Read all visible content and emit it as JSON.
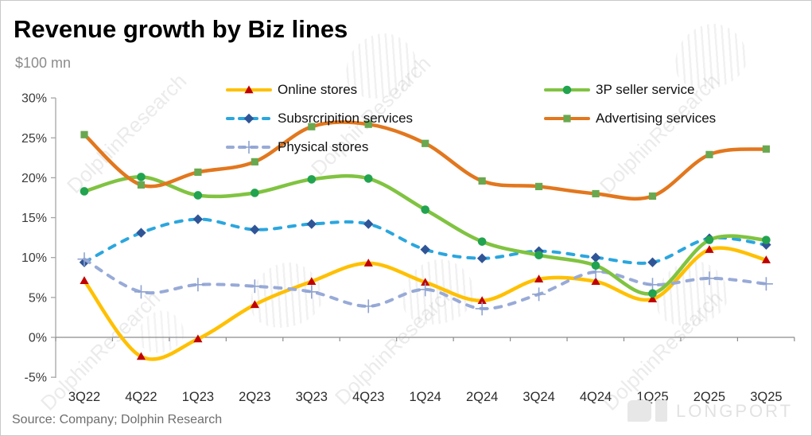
{
  "header": {
    "title": "Revenue growth by Biz lines",
    "subtitle": "$100 mn"
  },
  "footer": {
    "source": "Source: Company; Dolphin Research"
  },
  "watermark": {
    "text": "DolphinResearch",
    "brand": "LONGPORT"
  },
  "colors": {
    "axis": "#a6a6a6",
    "zero_line": "#8c8c8c",
    "tick_label": "#3b3b3b",
    "title": "#000000",
    "subtitle": "#8c8c8c"
  },
  "chart_data": {
    "type": "line",
    "title": "Revenue growth by Biz lines",
    "xlabel": "",
    "ylabel": "",
    "unit": "%",
    "ylim": [
      -5,
      30
    ],
    "yticks": [
      30,
      25,
      20,
      15,
      10,
      5,
      0,
      -5
    ],
    "grid": false,
    "legend_position": "top",
    "categories": [
      "3Q22",
      "4Q22",
      "1Q23",
      "2Q23",
      "3Q23",
      "4Q23",
      "1Q24",
      "2Q24",
      "3Q24",
      "4Q24",
      "1Q25",
      "2Q25",
      "3Q25"
    ],
    "series": [
      {
        "name": "Online stores",
        "color": "#FFC000",
        "marker": "triangle",
        "marker_color": "#C00000",
        "dash": false,
        "values": [
          7.1,
          -2.4,
          -0.2,
          4.1,
          7.0,
          9.3,
          6.9,
          4.6,
          7.3,
          7.0,
          4.8,
          11.0,
          9.7
        ]
      },
      {
        "name": "Subsrcripition services",
        "color": "#2BA6DE",
        "marker": "diamond",
        "marker_color": "#2F5597",
        "dash": true,
        "values": [
          9.4,
          13.1,
          14.8,
          13.5,
          14.2,
          14.2,
          11.0,
          9.9,
          10.8,
          10.0,
          9.4,
          12.4,
          11.6
        ]
      },
      {
        "name": "Physical stores",
        "color": "#98AAD7",
        "marker": "plus",
        "marker_color": "#8FA3D0",
        "dash": true,
        "values": [
          9.8,
          5.7,
          6.6,
          6.4,
          5.7,
          3.9,
          6.0,
          3.6,
          5.4,
          8.2,
          6.6,
          7.4,
          6.7
        ]
      },
      {
        "name": "3P seller service",
        "color": "#80C341",
        "marker": "circle",
        "marker_color": "#22A34F",
        "dash": false,
        "values": [
          18.3,
          20.1,
          17.8,
          18.1,
          19.8,
          19.9,
          16.0,
          12.0,
          10.3,
          9.0,
          5.5,
          12.2,
          12.2
        ]
      },
      {
        "name": "Advertising services",
        "color": "#E2771E",
        "marker": "square",
        "marker_color": "#6AA84F",
        "dash": false,
        "values": [
          25.4,
          19.1,
          20.7,
          22.0,
          26.4,
          26.7,
          24.3,
          19.6,
          18.9,
          18.0,
          17.7,
          22.9,
          23.6
        ]
      }
    ]
  }
}
